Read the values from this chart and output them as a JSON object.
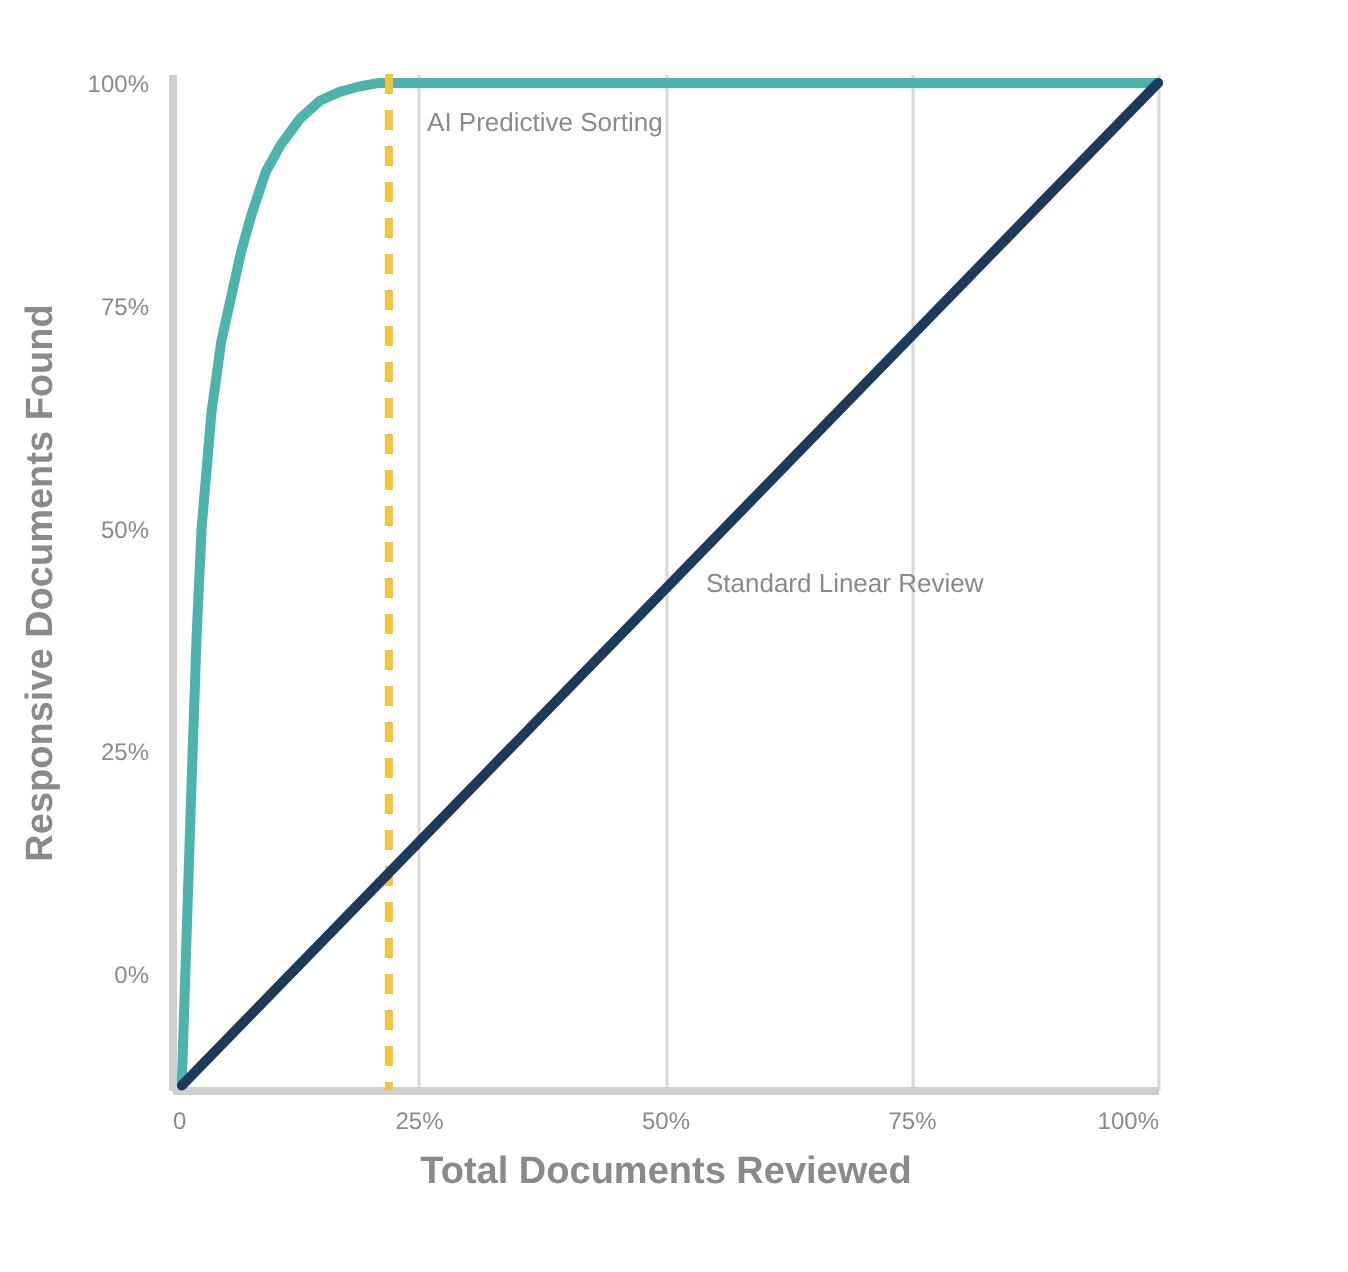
{
  "chart_data": {
    "type": "line",
    "xlabel": "Total Documents Reviewed",
    "ylabel": "Responsive Documents Found",
    "xlim": [
      0,
      100
    ],
    "ylim": [
      -13,
      101
    ],
    "xticks": [
      0,
      {
        "value": 25,
        "label": "25%"
      },
      {
        "value": 50,
        "label": "50%"
      },
      {
        "value": 75,
        "label": "75%"
      },
      {
        "value": 100,
        "label": "100%"
      }
    ],
    "yticks": [
      {
        "value": 0,
        "label": "0%"
      },
      {
        "value": 25,
        "label": "25%"
      },
      {
        "value": 50,
        "label": "50%"
      },
      {
        "value": 75,
        "label": "75%"
      },
      {
        "value": 100,
        "label": "100%"
      }
    ],
    "grid": "x",
    "marker": "none",
    "line_style": "solid",
    "series": [
      {
        "name": "AI Predictive Sorting",
        "color": "#4fb3ad",
        "x": [
          1,
          1.5,
          2,
          2.5,
          3,
          4,
          5,
          6,
          7,
          8,
          9.5,
          11,
          13,
          15,
          17,
          19,
          21,
          25,
          50,
          100
        ],
        "values": [
          -12,
          5,
          22,
          38,
          50,
          63,
          71,
          76,
          81,
          85,
          90,
          93,
          96,
          98,
          99,
          99.6,
          100,
          100,
          100,
          100
        ]
      },
      {
        "name": "Standard Linear Review",
        "color": "#1e3a5a",
        "x": [
          1,
          100
        ],
        "values": [
          -12.5,
          100
        ]
      }
    ],
    "ref_lines": [
      {
        "axis": "x",
        "value": 22,
        "color": "#f5c342",
        "line_style": "dashed"
      }
    ]
  }
}
